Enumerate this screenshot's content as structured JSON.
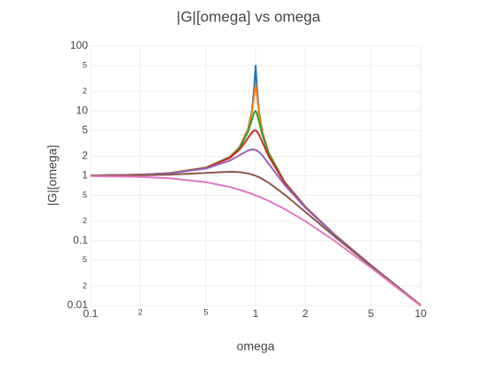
{
  "chart_data": {
    "type": "line",
    "title": "|G|[omega] vs omega",
    "x_label": "omega",
    "y_label": "|G|[omega]",
    "xscale": "log",
    "yscale": "log",
    "grid": true,
    "xlim": [
      0.1,
      10
    ],
    "ylim": [
      0.01,
      100
    ],
    "xticks": [
      0.1,
      {
        "value": 0.2,
        "label": "2"
      },
      {
        "value": 0.5,
        "label": "5"
      },
      1,
      2,
      5,
      10
    ],
    "yticks": [
      0.01,
      {
        "value": 0.02,
        "label": "2"
      },
      {
        "value": 0.05,
        "label": "5"
      },
      0.1,
      {
        "value": 0.2,
        "label": "2"
      },
      {
        "value": 0.5,
        "label": "5"
      },
      1,
      2,
      5,
      10,
      {
        "value": 20,
        "label": "2"
      },
      {
        "value": 50,
        "label": "5"
      },
      100
    ],
    "x": [
      0.1,
      0.2,
      0.3,
      0.5,
      0.7,
      0.8,
      0.9,
      0.95,
      0.98,
      1,
      1.02,
      1.05,
      1.1,
      1.2,
      1.5,
      2,
      3,
      5,
      10
    ],
    "series": [
      {
        "color": "#1f77b4",
        "values": [
          1.0101,
          1.0417,
          1.0989,
          1.3333,
          1.96,
          2.775,
          5.24,
          10.07,
          22.63,
          50,
          22.1,
          9.557,
          4.736,
          2.272,
          0.8,
          0.3333,
          0.125,
          0.04167,
          0.010101
        ]
      },
      {
        "color": "#ff7f0e",
        "values": [
          1.0101,
          1.0416,
          1.0988,
          1.3331,
          1.958,
          2.767,
          5.171,
          9.556,
          17.95,
          25,
          17.42,
          9.028,
          4.661,
          2.259,
          0.7998,
          0.3332,
          0.125,
          0.04167,
          0.0101
        ]
      },
      {
        "color": "#2ca02c",
        "values": [
          1.01,
          1.0414,
          1.0983,
          1.3304,
          1.9426,
          2.712,
          4.756,
          7.346,
          9.461,
          10,
          9.115,
          6.815,
          4.218,
          2.193,
          0.7943,
          0.3326,
          0.1249,
          0.04166,
          0.0101
        ]
      },
      {
        "color": "#d62728",
        "values": [
          1.0099,
          1.0408,
          1.0965,
          1.3216,
          1.8908,
          2.538,
          3.821,
          4.683,
          5.001,
          5,
          4.809,
          4.279,
          3.288,
          1.995,
          0.7779,
          0.3304,
          0.1247,
          0.04163,
          0.0101
        ]
      },
      {
        "color": "#9467bd",
        "values": [
          1.0093,
          1.0381,
          1.0895,
          1.2883,
          1.7188,
          2.076,
          2.457,
          2.549,
          2.538,
          2.5,
          2.439,
          2.313,
          2.051,
          1.536,
          0.7212,
          0.3221,
          0.1236,
          0.04152,
          0.01009
        ]
      },
      {
        "color": "#8c564b",
        "values": [
          1.005,
          1.0198,
          1.0436,
          1.1094,
          1.1546,
          1.1399,
          1.0872,
          1.0471,
          1.0196,
          1,
          0.9796,
          0.9479,
          0.893,
          0.7824,
          0.5121,
          0.2774,
          0.117,
          0.04079,
          0.01005
        ]
      },
      {
        "color": "#e377c2",
        "values": [
          0.9901,
          0.9615,
          0.9174,
          0.8,
          0.6711,
          0.6098,
          0.5525,
          0.5256,
          0.5101,
          0.5,
          0.4901,
          0.4756,
          0.4525,
          0.4098,
          0.3077,
          0.2,
          0.1,
          0.03846,
          0.0099
        ]
      }
    ]
  }
}
